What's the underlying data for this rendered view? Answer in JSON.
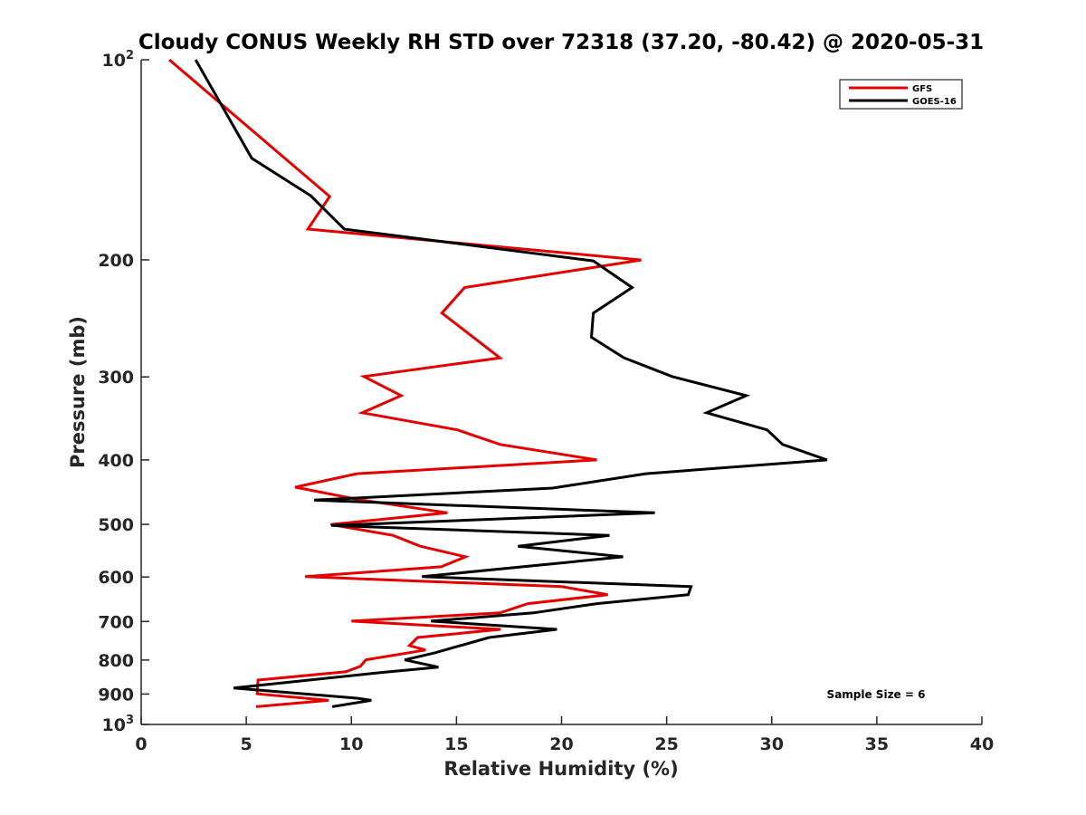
{
  "chart_data": {
    "type": "line",
    "title": "Cloudy CONUS Weekly RH STD over 72318 (37.20, -80.42) @ 2020-05-31",
    "xlabel": "Relative Humidity (%)",
    "ylabel": "Pressure (mb)",
    "xlim": [
      0,
      40
    ],
    "ylim": [
      100,
      1000
    ],
    "yscale": "log",
    "y_inverted": true,
    "grid": false,
    "x_ticks": [
      0,
      5,
      10,
      15,
      20,
      25,
      30,
      35,
      40
    ],
    "x_tick_labels": [
      "0",
      "5",
      "10",
      "15",
      "20",
      "25",
      "30",
      "35",
      "40"
    ],
    "y_ticks": [
      100,
      200,
      300,
      400,
      500,
      600,
      700,
      800,
      900,
      1000
    ],
    "y_tick_labels": [
      {
        "base": "10",
        "exp": "2"
      },
      {
        "base": "200",
        "exp": ""
      },
      {
        "base": "300",
        "exp": ""
      },
      {
        "base": "400",
        "exp": ""
      },
      {
        "base": "500",
        "exp": ""
      },
      {
        "base": "600",
        "exp": ""
      },
      {
        "base": "700",
        "exp": ""
      },
      {
        "base": "800",
        "exp": ""
      },
      {
        "base": "900",
        "exp": ""
      },
      {
        "base": "10",
        "exp": "3"
      }
    ],
    "legend": {
      "position": "top-right",
      "entries": [
        "GFS",
        "GOES-16"
      ]
    },
    "annotation": "Sample Size = 6",
    "series": [
      {
        "name": "GFS",
        "color": "#e50000",
        "x": [
          1.34,
          8.97,
          7.93,
          23.79,
          15.39,
          14.31,
          17.07,
          10.6,
          12.37,
          10.52,
          15.04,
          17.07,
          21.68,
          10.26,
          7.33,
          10.26,
          14.57,
          9.01,
          11.98,
          13.28,
          15.43,
          14.27,
          7.8,
          20.0,
          22.2,
          18.4,
          17.07,
          10.0,
          17.1,
          13.15,
          12.76,
          13.53,
          10.69,
          10.43,
          9.74,
          5.56,
          5.52,
          8.92,
          5.47
        ],
        "y": [
          100,
          160.6,
          179.8,
          200.1,
          220.1,
          240.5,
          280.9,
          299.6,
          320.1,
          339.7,
          360.4,
          379.1,
          400.0,
          419.5,
          439.6,
          458.3,
          480.4,
          500.3,
          519.4,
          539.3,
          559.6,
          579.1,
          599.3,
          620.3,
          637.9,
          658.0,
          679.4,
          699.1,
          719.4,
          739.9,
          760.8,
          772.7,
          799.7,
          817.5,
          833.1,
          857.4,
          899.4,
          919.9,
          940.5
        ]
      },
      {
        "name": "GOES-16",
        "color": "#000000",
        "x": [
          2.59,
          5.26,
          8.06,
          9.66,
          21.51,
          23.36,
          21.51,
          21.42,
          22.97,
          25.26,
          28.79,
          26.9,
          29.78,
          30.52,
          32.63,
          24.01,
          19.57,
          8.23,
          24.44,
          9.05,
          22.28,
          17.93,
          22.93,
          13.36,
          26.16,
          26.03,
          21.68,
          18.66,
          13.79,
          19.78,
          16.55,
          13.97,
          12.54,
          14.14,
          11.38,
          4.4,
          10.3,
          10.95,
          9.09
        ],
        "y": [
          100,
          140.7,
          160.1,
          179.8,
          200.7,
          220.1,
          240.5,
          261.5,
          280.9,
          299.6,
          320.1,
          339.7,
          360.4,
          379.1,
          400.0,
          419.5,
          441.0,
          459.8,
          480.4,
          501.9,
          519.4,
          539.3,
          559.6,
          599.3,
          620.3,
          637.9,
          658.0,
          679.4,
          699.1,
          719.4,
          739.9,
          780.2,
          799.7,
          819.9,
          835.5,
          881.6,
          913.4,
          919.9,
          940.5
        ]
      }
    ]
  }
}
